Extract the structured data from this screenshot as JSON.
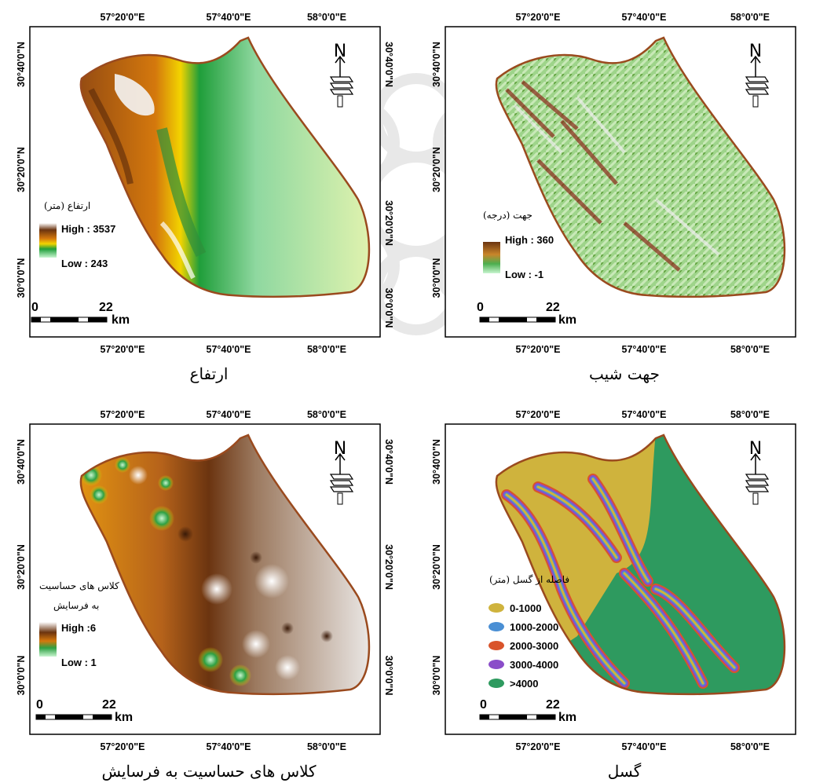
{
  "colors": {
    "boundary": "#9a4a1e",
    "elevation_ramp": [
      "#ffffff",
      "#8b4513",
      "#d4780d",
      "#f2d400",
      "#1f9e3a",
      "#c8f5d0"
    ],
    "fault_classes": [
      "#cfb33d",
      "#4a8fd4",
      "#d9542b",
      "#8a4dc9",
      "#2e9a5f"
    ]
  },
  "panels": {
    "elevation": {
      "caption": "ارتفاع",
      "legend_title": "ارتفاع (متر)",
      "legend_high": "High : 3537",
      "legend_low": "Low : 243"
    },
    "aspect": {
      "caption": "جهت شیب",
      "legend_title": "جهت (درجه)",
      "legend_high": "High : 360",
      "legend_low": "Low : -1"
    },
    "sensitivity": {
      "caption": "کلاس های حساسیت به فرسایش",
      "legend_title_1": "کلاس های حساسیت",
      "legend_title_2": "به فرسایش",
      "legend_high": "High :6",
      "legend_low": "Low : 1"
    },
    "fault": {
      "caption": "گسل",
      "legend_title": "فاصله از گسل (متر)",
      "classes": [
        {
          "label": "0-1000",
          "color": "#cfb33d"
        },
        {
          "label": "1000-2000",
          "color": "#4a8fd4"
        },
        {
          "label": "2000-3000",
          "color": "#d9542b"
        },
        {
          "label": "3000-4000",
          "color": "#8a4dc9"
        },
        {
          "label": ">4000",
          "color": "#2e9a5f"
        }
      ]
    }
  },
  "graticule": {
    "lon_labels": [
      "57°20'0\"E",
      "57°40'0\"E",
      "58°0'0\"E"
    ],
    "lat_labels": [
      "30°40'0\"N",
      "30°20'0\"N",
      "30°0'0\"N"
    ]
  },
  "scalebar": {
    "zero": "0",
    "value": "22",
    "unit": "km"
  },
  "north_arrow": {
    "letter": "N"
  }
}
